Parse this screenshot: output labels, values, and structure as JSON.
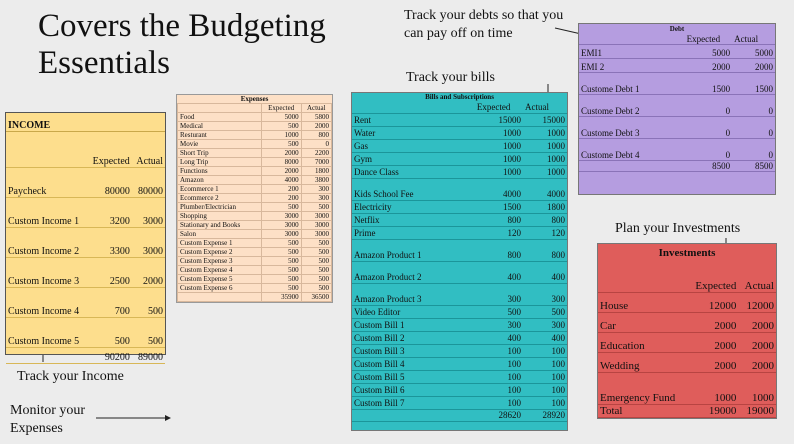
{
  "title": {
    "line1": "Covers the Budgeting",
    "line2": "Essentials"
  },
  "callouts": {
    "debts": "Track your debts so that you can pay off on time",
    "bills": "Track your bills",
    "investments": "Plan your Investments",
    "income": "Track your Income",
    "expenses_line1": "Monitor your",
    "expenses_line2": "Expenses"
  },
  "income": {
    "title": "INCOME",
    "col_expected": "Expected",
    "col_actual": "Actual",
    "rows": [
      {
        "label": "Paycheck",
        "expected": "80000",
        "actual": "80000"
      },
      {
        "label": "Custom Income 1",
        "expected": "3200",
        "actual": "3000"
      },
      {
        "label": "Custom Income 2",
        "expected": "3300",
        "actual": "3000"
      },
      {
        "label": "Custom Income 3",
        "expected": "2500",
        "actual": "2000"
      },
      {
        "label": "Custom Income 4",
        "expected": "700",
        "actual": "500"
      },
      {
        "label": "Custom Income 5",
        "expected": "500",
        "actual": "500"
      }
    ],
    "total_expected": "90200",
    "total_actual": "89000"
  },
  "expenses": {
    "title": "Expenses",
    "col_expected": "Expected",
    "col_actual": "Actual",
    "rows": [
      {
        "label": "Food",
        "expected": "5000",
        "actual": "5800"
      },
      {
        "label": "Medical",
        "expected": "500",
        "actual": "2000"
      },
      {
        "label": "Resturant",
        "expected": "1000",
        "actual": "800"
      },
      {
        "label": "Movie",
        "expected": "500",
        "actual": "0"
      },
      {
        "label": "Short Trip",
        "expected": "2000",
        "actual": "2200"
      },
      {
        "label": "Long Trip",
        "expected": "8000",
        "actual": "7000"
      },
      {
        "label": "Functions",
        "expected": "2000",
        "actual": "1800"
      },
      {
        "label": "Amazon",
        "expected": "4000",
        "actual": "3800"
      },
      {
        "label": "Ecommerce 1",
        "expected": "200",
        "actual": "300"
      },
      {
        "label": "Ecommerce 2",
        "expected": "200",
        "actual": "300"
      },
      {
        "label": "Plumber/Electrician",
        "expected": "500",
        "actual": "500"
      },
      {
        "label": "Shopping",
        "expected": "3000",
        "actual": "3000"
      },
      {
        "label": "Stationary and Books",
        "expected": "3000",
        "actual": "3000"
      },
      {
        "label": "Salon",
        "expected": "3000",
        "actual": "3000"
      },
      {
        "label": "Custom Expense 1",
        "expected": "500",
        "actual": "500"
      },
      {
        "label": "Custom Expense 2",
        "expected": "500",
        "actual": "500"
      },
      {
        "label": "Custom Expense 3",
        "expected": "500",
        "actual": "500"
      },
      {
        "label": "Custom Expense 4",
        "expected": "500",
        "actual": "500"
      },
      {
        "label": "Custom Expense 5",
        "expected": "500",
        "actual": "500"
      },
      {
        "label": "Custom Expense 6",
        "expected": "500",
        "actual": "500"
      }
    ],
    "total_expected": "35900",
    "total_actual": "36500"
  },
  "bills": {
    "title": "Bills and Subscriptions",
    "col_expected": "Expected",
    "col_actual": "Actual",
    "rows": [
      {
        "label": "Rent",
        "expected": "15000",
        "actual": "15000",
        "gap": false
      },
      {
        "label": "Water",
        "expected": "1000",
        "actual": "1000",
        "gap": false
      },
      {
        "label": "Gas",
        "expected": "1000",
        "actual": "1000",
        "gap": false
      },
      {
        "label": "Gym",
        "expected": "1000",
        "actual": "1000",
        "gap": false
      },
      {
        "label": "Dance Class",
        "expected": "1000",
        "actual": "1000",
        "gap": false
      },
      {
        "label": "Kids School Fee",
        "expected": "4000",
        "actual": "4000",
        "gap": true
      },
      {
        "label": "Electricity",
        "expected": "1500",
        "actual": "1800",
        "gap": false
      },
      {
        "label": "Netflix",
        "expected": "800",
        "actual": "800",
        "gap": false
      },
      {
        "label": "Prime",
        "expected": "120",
        "actual": "120",
        "gap": false
      },
      {
        "label": "Amazon Product 1",
        "expected": "800",
        "actual": "800",
        "gap": true
      },
      {
        "label": "Amazon Product 2",
        "expected": "400",
        "actual": "400",
        "gap": true
      },
      {
        "label": "Amazon Product 3",
        "expected": "300",
        "actual": "300",
        "gap": true
      },
      {
        "label": "Video Editor",
        "expected": "500",
        "actual": "500",
        "gap": false
      },
      {
        "label": "Custom Bill 1",
        "expected": "300",
        "actual": "300",
        "gap": false
      },
      {
        "label": "Custom Bill 2",
        "expected": "400",
        "actual": "400",
        "gap": false
      },
      {
        "label": "Custom Bill 3",
        "expected": "100",
        "actual": "100",
        "gap": false
      },
      {
        "label": "Custom Bill 4",
        "expected": "100",
        "actual": "100",
        "gap": false
      },
      {
        "label": "Custom Bill 5",
        "expected": "100",
        "actual": "100",
        "gap": false
      },
      {
        "label": "Custom Bill 6",
        "expected": "100",
        "actual": "100",
        "gap": false
      },
      {
        "label": "Custom Bill 7",
        "expected": "100",
        "actual": "100",
        "gap": false
      }
    ],
    "total_expected": "28620",
    "total_actual": "28920"
  },
  "debt": {
    "title": "Debt",
    "col_expected": "Expected",
    "col_actual": "Actual",
    "rows": [
      {
        "label": "EMI1",
        "expected": "5000",
        "actual": "5000"
      },
      {
        "label": "EMI 2",
        "expected": "2000",
        "actual": "2000"
      },
      {
        "label": "Custome Debt 1",
        "expected": "1500",
        "actual": "1500"
      },
      {
        "label": "Custome Debt 2",
        "expected": "0",
        "actual": "0"
      },
      {
        "label": "Custome Debt 3",
        "expected": "0",
        "actual": "0"
      },
      {
        "label": "Custome Debt 4",
        "expected": "0",
        "actual": "0"
      }
    ],
    "total_expected": "8500",
    "total_actual": "8500"
  },
  "investments": {
    "title": "Investments",
    "col_expected": "Expected",
    "col_actual": "Actual",
    "rows": [
      {
        "label": "House",
        "expected": "12000",
        "actual": "12000"
      },
      {
        "label": "Car",
        "expected": "2000",
        "actual": "2000"
      },
      {
        "label": "Education",
        "expected": "2000",
        "actual": "2000"
      },
      {
        "label": "Wedding",
        "expected": "2000",
        "actual": "2000"
      },
      {
        "label": "Emergency Fund",
        "expected": "1000",
        "actual": "1000"
      }
    ],
    "total_label": "Total",
    "total_expected": "19000",
    "total_actual": "19000"
  }
}
